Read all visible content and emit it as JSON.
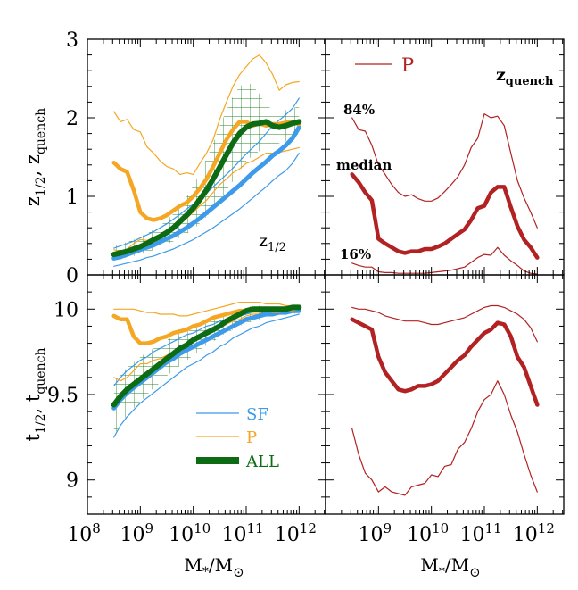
{
  "colors": {
    "sf": "#3d9be9",
    "p": "#f5a623",
    "all": "#0d6b14",
    "all_hatch": "#2a8a2a",
    "quench": "#b22222",
    "axis": "#000000"
  },
  "labels": {
    "top_left_label": "z",
    "top_left_sub": "1/2",
    "top_right_label": "z",
    "top_right_sub": "quench",
    "p_label": "P",
    "pct84": "84%",
    "median": "median",
    "pct16": "16%",
    "ylabel_top": "z",
    "ylabel_top_sub1": "1/2",
    "ylabel_top_sep": ",",
    "ylabel_top_z2": "z",
    "ylabel_top_sub2": "quench",
    "ylabel_bot": "t",
    "ylabel_bot_sub1": "1/2",
    "ylabel_bot_sep": ",",
    "ylabel_bot_t2": "t",
    "ylabel_bot_sub2": "quench",
    "xlabel_m": "M",
    "xlabel_star": "*",
    "xlabel_slash": "/M",
    "xlabel_sun": "⊙"
  },
  "legend": [
    {
      "name": "SF",
      "style": "thin-sf"
    },
    {
      "name": "P",
      "style": "thin-p"
    },
    {
      "name": "ALL",
      "style": "thick-all"
    }
  ],
  "axes": {
    "x_log_range": [
      8,
      12.5
    ],
    "x_ticks_left": [
      "10",
      "10",
      "10",
      "10",
      "10"
    ],
    "x_tick_exps_left": [
      "8",
      "9",
      "10",
      "11",
      "12"
    ],
    "x_ticks_right": [
      "10",
      "10",
      "10",
      "10"
    ],
    "x_tick_exps_right": [
      "9",
      "10",
      "11",
      "12"
    ],
    "top_y_range": [
      0,
      3
    ],
    "top_y_ticks": [
      "0",
      "1",
      "2",
      "3"
    ],
    "bot_y_range": [
      8.8,
      10.2
    ],
    "bot_y_ticks": [
      "9",
      "9.5",
      "10"
    ]
  },
  "chart_data": [
    {
      "panel": "top-left",
      "type": "line",
      "ylabel": "z_1/2, z_quench",
      "ylim": [
        0,
        3
      ],
      "xscale": "log",
      "x": [
        8.5,
        8.625,
        8.75,
        8.875,
        9.0,
        9.125,
        9.25,
        9.375,
        9.5,
        9.625,
        9.75,
        9.875,
        10.0,
        10.125,
        10.25,
        10.375,
        10.5,
        10.625,
        10.75,
        10.875,
        11.0,
        11.125,
        11.25,
        11.375,
        11.5,
        11.625,
        11.75,
        11.875,
        12.0
      ],
      "series": [
        {
          "name": "SF",
          "role": "median",
          "values": [
            0.21,
            0.23,
            0.26,
            0.29,
            0.32,
            0.35,
            0.38,
            0.42,
            0.46,
            0.5,
            0.55,
            0.6,
            0.66,
            0.72,
            0.79,
            0.86,
            0.93,
            1.0,
            1.07,
            1.14,
            1.22,
            1.3,
            1.37,
            1.44,
            1.52,
            1.58,
            1.65,
            1.74,
            1.88
          ]
        },
        {
          "name": "SF",
          "role": "p16",
          "values": [
            0.11,
            0.13,
            0.15,
            0.17,
            0.19,
            0.22,
            0.24,
            0.27,
            0.3,
            0.33,
            0.37,
            0.41,
            0.45,
            0.5,
            0.55,
            0.6,
            0.66,
            0.72,
            0.78,
            0.84,
            0.91,
            0.98,
            1.05,
            1.12,
            1.2,
            1.27,
            1.33,
            1.42,
            1.55
          ]
        },
        {
          "name": "SF",
          "role": "p84",
          "values": [
            0.34,
            0.37,
            0.4,
            0.43,
            0.47,
            0.51,
            0.55,
            0.6,
            0.65,
            0.71,
            0.77,
            0.84,
            0.9,
            0.97,
            1.04,
            1.12,
            1.2,
            1.28,
            1.36,
            1.45,
            1.54,
            1.62,
            1.7,
            1.8,
            1.9,
            1.97,
            2.04,
            2.12,
            2.25
          ]
        },
        {
          "name": "P",
          "role": "median",
          "values": [
            1.43,
            1.35,
            1.31,
            1.08,
            0.8,
            0.72,
            0.7,
            0.72,
            0.76,
            0.82,
            0.88,
            0.92,
            1.0,
            1.1,
            1.22,
            1.38,
            1.55,
            1.72,
            1.85,
            1.95,
            1.95,
            1.9,
            1.93,
            1.9,
            1.92,
            1.92,
            1.94,
            1.95,
            1.92
          ]
        },
        {
          "name": "P",
          "role": "p16",
          "values": [
            0.32,
            0.3,
            0.33,
            0.4,
            0.45,
            0.44,
            0.47,
            0.5,
            0.55,
            0.6,
            0.65,
            0.72,
            0.8,
            0.88,
            0.95,
            1.05,
            1.15,
            1.22,
            1.3,
            1.35,
            1.42,
            1.45,
            1.5,
            1.55,
            1.55,
            1.56,
            1.58,
            1.6,
            1.62
          ]
        },
        {
          "name": "P",
          "role": "p84",
          "values": [
            2.08,
            1.95,
            1.98,
            1.85,
            1.82,
            1.63,
            1.55,
            1.45,
            1.38,
            1.35,
            1.28,
            1.3,
            1.28,
            1.42,
            1.55,
            1.72,
            1.98,
            2.2,
            2.4,
            2.55,
            2.65,
            2.75,
            2.8,
            2.7,
            2.55,
            2.35,
            2.42,
            2.45,
            2.46
          ]
        },
        {
          "name": "ALL",
          "role": "median",
          "values": [
            0.26,
            0.28,
            0.3,
            0.33,
            0.36,
            0.4,
            0.45,
            0.49,
            0.54,
            0.6,
            0.68,
            0.76,
            0.85,
            0.96,
            1.08,
            1.22,
            1.37,
            1.53,
            1.68,
            1.8,
            1.88,
            1.92,
            1.93,
            1.95,
            1.9,
            1.88,
            1.9,
            1.93,
            1.95
          ]
        },
        {
          "name": "ALL",
          "role": "p16",
          "values": [
            0.19,
            0.2,
            0.22,
            0.24,
            0.26,
            0.29,
            0.32,
            0.35,
            0.39,
            0.43,
            0.48,
            0.53,
            0.58,
            0.66,
            0.74,
            0.84,
            0.95,
            1.07,
            1.2,
            1.32,
            1.45,
            1.52,
            1.58,
            1.62,
            1.65,
            1.68,
            1.7,
            1.75,
            1.8
          ]
        },
        {
          "name": "ALL",
          "role": "p84",
          "values": [
            0.37,
            0.4,
            0.42,
            0.45,
            0.49,
            0.53,
            0.58,
            0.63,
            0.7,
            0.78,
            0.88,
            1.0,
            1.14,
            1.3,
            1.48,
            1.68,
            1.9,
            2.1,
            2.28,
            2.4,
            2.45,
            2.42,
            2.3,
            2.18,
            2.1,
            2.08,
            2.1,
            2.12,
            2.15
          ]
        }
      ]
    },
    {
      "panel": "top-right",
      "type": "line",
      "ylim": [
        0,
        3
      ],
      "xscale": "log",
      "x": [
        8.5,
        8.625,
        8.75,
        8.875,
        9.0,
        9.125,
        9.25,
        9.375,
        9.5,
        9.625,
        9.75,
        9.875,
        10.0,
        10.125,
        10.25,
        10.375,
        10.5,
        10.625,
        10.75,
        10.875,
        11.0,
        11.125,
        11.25,
        11.375,
        11.5,
        11.625,
        11.75,
        11.875,
        12.0
      ],
      "series": [
        {
          "name": "P",
          "role": "median",
          "values": [
            1.28,
            1.18,
            1.05,
            0.95,
            0.46,
            0.4,
            0.35,
            0.3,
            0.28,
            0.3,
            0.3,
            0.33,
            0.33,
            0.36,
            0.4,
            0.46,
            0.52,
            0.58,
            0.7,
            0.85,
            0.88,
            1.05,
            1.12,
            1.12,
            0.86,
            0.62,
            0.45,
            0.35,
            0.22
          ]
        },
        {
          "name": "P",
          "role": "p16",
          "values": [
            0.15,
            0.12,
            0.1,
            0.1,
            0.04,
            0.03,
            0.03,
            0.02,
            0.02,
            0.02,
            0.02,
            0.02,
            0.03,
            0.04,
            0.05,
            0.06,
            0.08,
            0.1,
            0.16,
            0.22,
            0.26,
            0.25,
            0.35,
            0.25,
            0.18,
            0.12,
            0.05,
            0.02,
            0.01
          ]
        },
        {
          "name": "P",
          "role": "p84",
          "values": [
            2.0,
            1.85,
            1.83,
            1.65,
            1.4,
            1.28,
            1.15,
            1.05,
            1.0,
            1.02,
            0.97,
            0.94,
            0.94,
            0.98,
            1.06,
            1.15,
            1.25,
            1.4,
            1.62,
            1.74,
            2.05,
            2.0,
            2.02,
            1.9,
            1.55,
            1.2,
            0.98,
            0.8,
            0.6
          ]
        }
      ]
    },
    {
      "panel": "bottom-left",
      "type": "line",
      "ylabel": "t_1/2, t_quench",
      "ylim": [
        8.8,
        10.2
      ],
      "xscale": "log",
      "x": [
        8.5,
        8.625,
        8.75,
        8.875,
        9.0,
        9.125,
        9.25,
        9.375,
        9.5,
        9.625,
        9.75,
        9.875,
        10.0,
        10.125,
        10.25,
        10.375,
        10.5,
        10.625,
        10.75,
        10.875,
        11.0,
        11.125,
        11.25,
        11.375,
        11.5,
        11.625,
        11.75,
        11.875,
        12.0
      ],
      "series": [
        {
          "name": "SF",
          "role": "median",
          "values": [
            9.42,
            9.47,
            9.51,
            9.54,
            9.57,
            9.6,
            9.63,
            9.66,
            9.69,
            9.71,
            9.74,
            9.76,
            9.78,
            9.8,
            9.82,
            9.84,
            9.86,
            9.88,
            9.9,
            9.92,
            9.94,
            9.95,
            9.96,
            9.97,
            9.97,
            9.98,
            9.98,
            9.99,
            9.99
          ]
        },
        {
          "name": "SF",
          "role": "p16",
          "values": [
            9.25,
            9.32,
            9.37,
            9.41,
            9.45,
            9.48,
            9.51,
            9.54,
            9.57,
            9.6,
            9.63,
            9.66,
            9.68,
            9.7,
            9.73,
            9.75,
            9.78,
            9.8,
            9.83,
            9.85,
            9.87,
            9.89,
            9.9,
            9.92,
            9.93,
            9.94,
            9.95,
            9.96,
            9.97
          ]
        },
        {
          "name": "SF",
          "role": "p84",
          "values": [
            9.55,
            9.6,
            9.64,
            9.67,
            9.7,
            9.72,
            9.75,
            9.77,
            9.79,
            9.81,
            9.83,
            9.85,
            9.86,
            9.88,
            9.9,
            9.91,
            9.93,
            9.94,
            9.95,
            9.96,
            9.97,
            9.98,
            9.99,
            9.99,
            10.0,
            10.0,
            10.0,
            10.01,
            10.01
          ]
        },
        {
          "name": "P",
          "role": "median",
          "values": [
            9.96,
            9.94,
            9.94,
            9.84,
            9.8,
            9.8,
            9.81,
            9.83,
            9.84,
            9.86,
            9.87,
            9.88,
            9.9,
            9.91,
            9.93,
            9.95,
            9.96,
            9.97,
            9.98,
            9.99,
            9.99,
            9.99,
            9.99,
            10.0,
            9.99,
            9.99,
            10.0,
            10.0,
            10.01
          ]
        },
        {
          "name": "P",
          "role": "p16",
          "values": [
            9.6,
            9.58,
            9.6,
            9.64,
            9.68,
            9.68,
            9.7,
            9.71,
            9.73,
            9.75,
            9.77,
            9.79,
            9.81,
            9.83,
            9.85,
            9.87,
            9.89,
            9.91,
            9.93,
            9.94,
            9.96,
            9.97,
            9.97,
            9.98,
            9.98,
            9.98,
            9.99,
            9.99,
            9.99
          ]
        },
        {
          "name": "P",
          "role": "p84",
          "values": [
            10.0,
            10.0,
            10.0,
            10.0,
            9.99,
            9.98,
            9.98,
            9.97,
            9.97,
            9.97,
            9.96,
            9.96,
            9.97,
            9.98,
            9.99,
            10.0,
            10.01,
            10.02,
            10.03,
            10.04,
            10.04,
            10.04,
            10.04,
            10.03,
            10.03,
            10.03,
            10.02,
            10.02,
            10.02
          ]
        },
        {
          "name": "ALL",
          "role": "median",
          "values": [
            9.44,
            9.49,
            9.53,
            9.56,
            9.59,
            9.62,
            9.65,
            9.68,
            9.71,
            9.74,
            9.77,
            9.79,
            9.82,
            9.84,
            9.86,
            9.88,
            9.9,
            9.93,
            9.95,
            9.97,
            9.99,
            10.0,
            10.0,
            10.0,
            10.0,
            10.0,
            10.0,
            10.01,
            10.01
          ]
        },
        {
          "name": "ALL",
          "role": "p16",
          "values": [
            9.26,
            9.33,
            9.38,
            9.42,
            9.46,
            9.5,
            9.54,
            9.57,
            9.61,
            9.64,
            9.67,
            9.7,
            9.73,
            9.76,
            9.79,
            9.81,
            9.84,
            9.86,
            9.88,
            9.9,
            9.92,
            9.93,
            9.94,
            9.95,
            9.96,
            9.96,
            9.97,
            9.97,
            9.98
          ]
        },
        {
          "name": "ALL",
          "role": "p84",
          "values": [
            9.58,
            9.62,
            9.66,
            9.69,
            9.72,
            9.75,
            9.77,
            9.8,
            9.82,
            9.84,
            9.86,
            9.88,
            9.9,
            9.92,
            9.94,
            9.95,
            9.97,
            9.98,
            9.99,
            10.0,
            10.01,
            10.02,
            10.02,
            10.02,
            10.02,
            10.02,
            10.02,
            10.02,
            10.02
          ]
        }
      ]
    },
    {
      "panel": "bottom-right",
      "type": "line",
      "ylim": [
        8.8,
        10.2
      ],
      "xscale": "log",
      "x": [
        8.5,
        8.625,
        8.75,
        8.875,
        9.0,
        9.125,
        9.25,
        9.375,
        9.5,
        9.625,
        9.75,
        9.875,
        10.0,
        10.125,
        10.25,
        10.375,
        10.5,
        10.625,
        10.75,
        10.875,
        11.0,
        11.125,
        11.25,
        11.375,
        11.5,
        11.625,
        11.75,
        11.875,
        12.0
      ],
      "series": [
        {
          "name": "P",
          "role": "median",
          "values": [
            9.94,
            9.92,
            9.9,
            9.88,
            9.72,
            9.63,
            9.58,
            9.53,
            9.52,
            9.53,
            9.55,
            9.55,
            9.56,
            9.58,
            9.62,
            9.66,
            9.7,
            9.73,
            9.78,
            9.82,
            9.86,
            9.88,
            9.92,
            9.91,
            9.84,
            9.72,
            9.66,
            9.55,
            9.44
          ]
        },
        {
          "name": "P",
          "role": "p16",
          "values": [
            9.3,
            9.15,
            9.04,
            9.0,
            8.93,
            8.96,
            8.93,
            8.92,
            8.91,
            8.96,
            8.97,
            8.98,
            9.03,
            9.02,
            9.08,
            9.09,
            9.18,
            9.22,
            9.3,
            9.4,
            9.47,
            9.5,
            9.58,
            9.5,
            9.38,
            9.28,
            9.15,
            9.03,
            8.93
          ]
        },
        {
          "name": "P",
          "role": "p84",
          "values": [
            10.01,
            10.0,
            10.0,
            9.99,
            9.98,
            9.96,
            9.95,
            9.94,
            9.93,
            9.93,
            9.93,
            9.92,
            9.91,
            9.91,
            9.92,
            9.93,
            9.94,
            9.95,
            9.97,
            9.99,
            10.01,
            10.02,
            10.02,
            10.01,
            9.99,
            9.97,
            9.94,
            9.89,
            9.81
          ]
        }
      ]
    }
  ]
}
